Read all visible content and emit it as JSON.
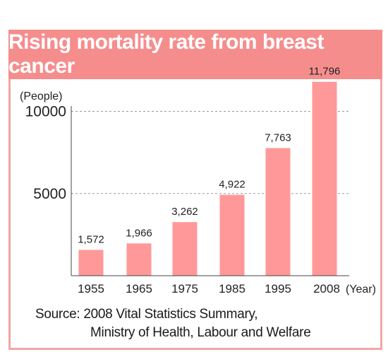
{
  "title": "Rising mortality rate from breast cancer",
  "chart_data": {
    "type": "bar",
    "categories": [
      "1955",
      "1965",
      "1975",
      "1985",
      "1995",
      "2008"
    ],
    "values": [
      1572,
      1966,
      3262,
      4922,
      7763,
      11796
    ],
    "value_labels": [
      "1,572",
      "1,966",
      "3,262",
      "4,922",
      "7,763",
      "11,796"
    ],
    "y_ticks": [
      5000,
      10000
    ],
    "y_tick_labels": [
      "5000",
      "10000"
    ],
    "ylim": [
      0,
      12000
    ],
    "ylabel": "(People)",
    "xlabel": "(Year)",
    "grid": "dashed horizontal lines at y ticks",
    "bar_color": "#ff9999"
  },
  "source_line1": "Source: 2008 Vital Statistics Summary,",
  "source_line2": "Ministry of Health, Labour and Welfare",
  "colors": {
    "title_bg": "#f68d8d",
    "border": "#f7a5a5",
    "bar": "#ff9999"
  }
}
